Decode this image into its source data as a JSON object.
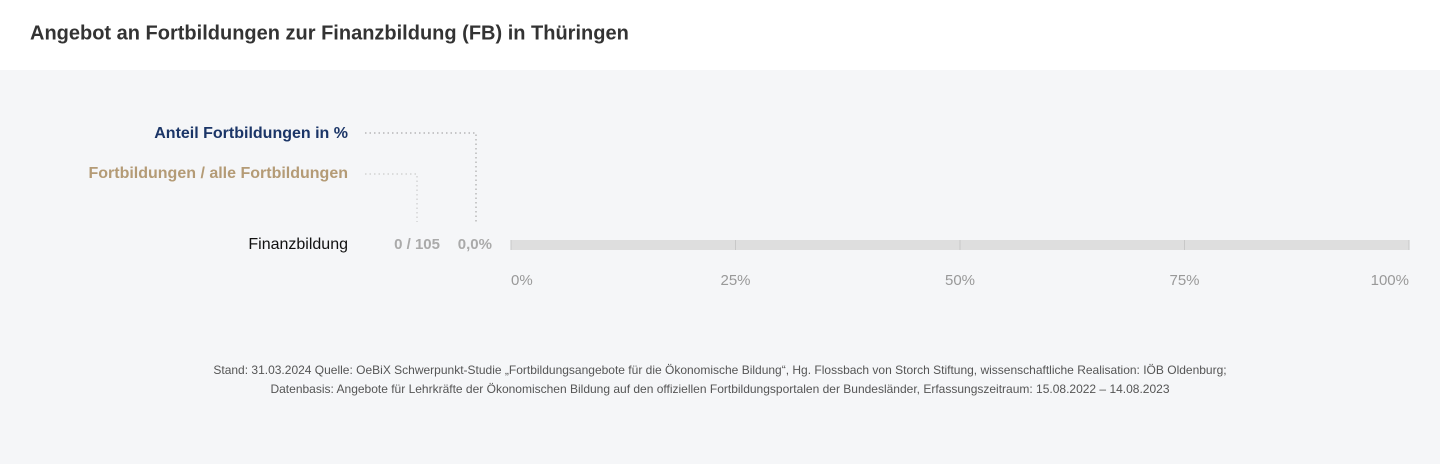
{
  "chart_data": {
    "type": "bar",
    "orientation": "horizontal",
    "title": "Angebot an Fortbildungen zur Finanzbildung (FB) in Thüringen",
    "categories": [
      "Finanzbildung"
    ],
    "series": [
      {
        "name": "Anteil Fortbildungen  in %",
        "color": "#1b3567",
        "values": [
          0
        ],
        "value_labels": [
          "0,0%"
        ]
      }
    ],
    "counts": {
      "name": "Fortbildungen / alle Fortbildungen",
      "color": "#b49b76",
      "labels": [
        "0 / 105"
      ]
    },
    "xlim": [
      0,
      100
    ],
    "xticks": [
      {
        "value": 0,
        "label": "0%"
      },
      {
        "value": 25,
        "label": "25%"
      },
      {
        "value": 50,
        "label": "50%"
      },
      {
        "value": 75,
        "label": "75%"
      },
      {
        "value": 100,
        "label": "100%"
      }
    ],
    "grid": true,
    "source": [
      "Stand: 31.03.2024 Quelle: OeBiX Schwerpunkt-Studie „Fortbildungsangebote für die Ökonomische Bildung“, Hg. Flossbach von Storch Stiftung, wissenschaftliche Realisation: IÖB Oldenburg;",
      "Datenbasis: Angebote für Lehrkräfte der Ökonomischen Bildung auf den offiziellen Fortbildungsportalen der Bundesländer, Erfassungszeitraum: 15.08.2022 – 14.08.2023"
    ]
  }
}
